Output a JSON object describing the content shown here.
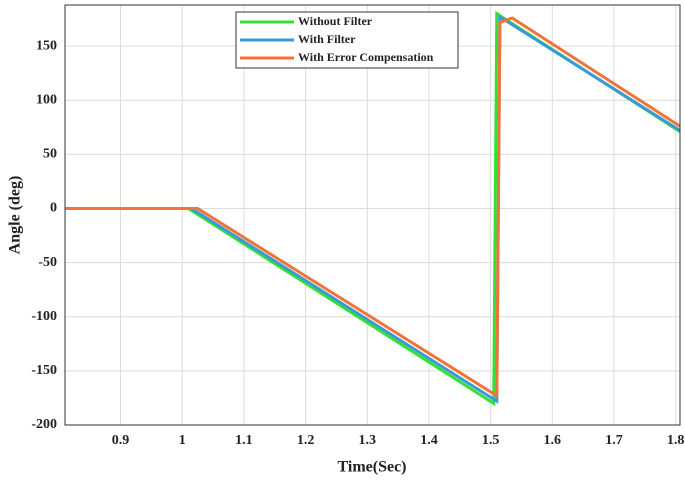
{
  "chart_data": {
    "type": "line",
    "xlabel": "Time(Sec)",
    "ylabel": "Angle (deg)",
    "xlim": [
      0.81,
      1.807
    ],
    "ylim": [
      -200,
      188
    ],
    "xticks": [
      0.9,
      1,
      1.1,
      1.2,
      1.3,
      1.4,
      1.5,
      1.6,
      1.7,
      1.8
    ],
    "yticks": [
      -200,
      -150,
      -100,
      -50,
      0,
      50,
      100,
      150
    ],
    "grid": true,
    "legend": "top",
    "series": [
      {
        "name": "Without Filter",
        "color": "#33e033",
        "x": [
          0.81,
          1.01,
          1.505,
          1.51,
          1.807
        ],
        "values": [
          0,
          0,
          -180,
          180,
          71
        ]
      },
      {
        "name": "With Filter",
        "color": "#3a9ad9",
        "x": [
          0.81,
          1.015,
          1.51,
          1.515,
          1.807
        ],
        "values": [
          0,
          0,
          -178,
          177,
          72
        ]
      },
      {
        "name": "With Error Compensation",
        "color": "#f07338",
        "x": [
          0.81,
          1.025,
          1.51,
          1.515,
          1.535,
          1.807
        ],
        "values": [
          0,
          0,
          -173,
          172,
          176,
          76
        ]
      }
    ]
  }
}
